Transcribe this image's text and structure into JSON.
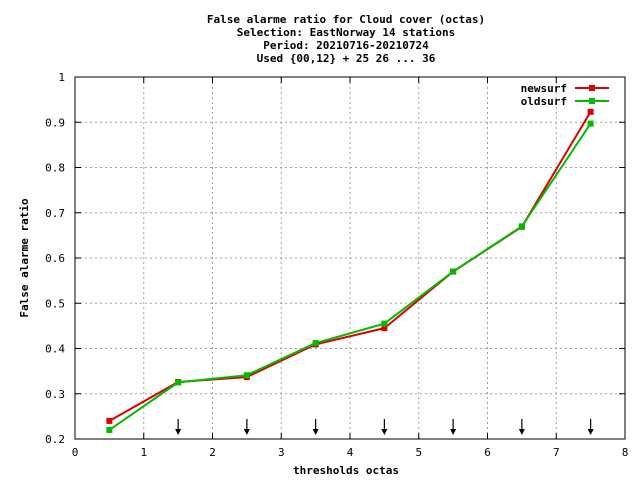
{
  "chart_data": {
    "type": "line",
    "title_lines": [
      "False alarme ratio  for Cloud cover (octas)",
      "Selection: EastNorway     14 stations",
      "Period: 20210716-20210724",
      "Used {00,12} + 25 26 ... 36"
    ],
    "xlabel": "thresholds octas",
    "ylabel": "False alarme ratio",
    "xlim": [
      0,
      8
    ],
    "ylim": [
      0.2,
      1.0
    ],
    "x_ticks": [
      0,
      1,
      2,
      3,
      4,
      5,
      6,
      7,
      8
    ],
    "x_tick_labels": [
      "0",
      "1",
      "2",
      "3",
      "4",
      "5",
      "6",
      "7",
      "8"
    ],
    "y_ticks": [
      0.2,
      0.3,
      0.4,
      0.5,
      0.6,
      0.7,
      0.8,
      0.9,
      1.0
    ],
    "y_tick_labels": [
      "0.2",
      "0.3",
      "0.4",
      "0.5",
      "0.6",
      "0.7",
      "0.8",
      "0.9",
      "1"
    ],
    "grid": true,
    "legend_position": "top-right",
    "arrow_markers_x": [
      1.5,
      2.5,
      3.5,
      4.5,
      5.5,
      6.5,
      7.5
    ],
    "series": [
      {
        "name": "newsurf",
        "color": "#dd0000",
        "x": [
          0.5,
          1.5,
          2.5,
          3.5,
          4.5,
          5.5,
          6.5,
          7.5
        ],
        "y": [
          0.24,
          0.326,
          0.337,
          0.409,
          0.445,
          0.57,
          0.669,
          0.923
        ]
      },
      {
        "name": "oldsurf",
        "color": "#00bb00",
        "x": [
          0.5,
          1.5,
          2.5,
          3.5,
          4.5,
          5.5,
          6.5,
          7.5
        ],
        "y": [
          0.22,
          0.325,
          0.341,
          0.412,
          0.455,
          0.57,
          0.67,
          0.897
        ]
      }
    ]
  }
}
